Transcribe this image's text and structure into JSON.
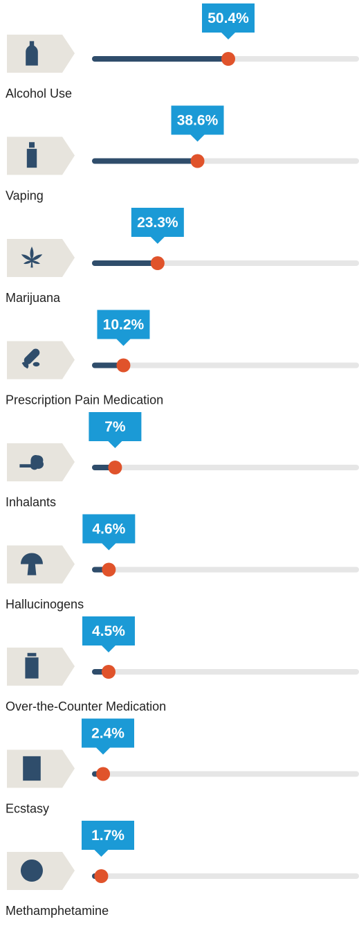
{
  "chart_data": {
    "type": "slider",
    "categories": [
      "Alcohol Use",
      "Vaping",
      "Marijuana",
      "Prescription Pain Medication",
      "Inhalants",
      "Hallucinogens",
      "Over-the-Counter Medication",
      "Ecstasy",
      "Methamphetamine"
    ],
    "values": [
      50.4,
      38.6,
      23.3,
      10.2,
      7,
      4.6,
      4.5,
      2.4,
      1.7
    ],
    "value_labels": [
      "50.4%",
      "38.6%",
      "23.3%",
      "10.2%",
      "7%",
      "4.6%",
      "4.5%",
      "2.4%",
      "1.7%"
    ],
    "xlim": [
      0,
      100
    ],
    "colors": {
      "fill": "#2f4d6b",
      "track": "#e6e6e6",
      "dot": "#e0532b",
      "callout": "#1b9ad6"
    }
  }
}
